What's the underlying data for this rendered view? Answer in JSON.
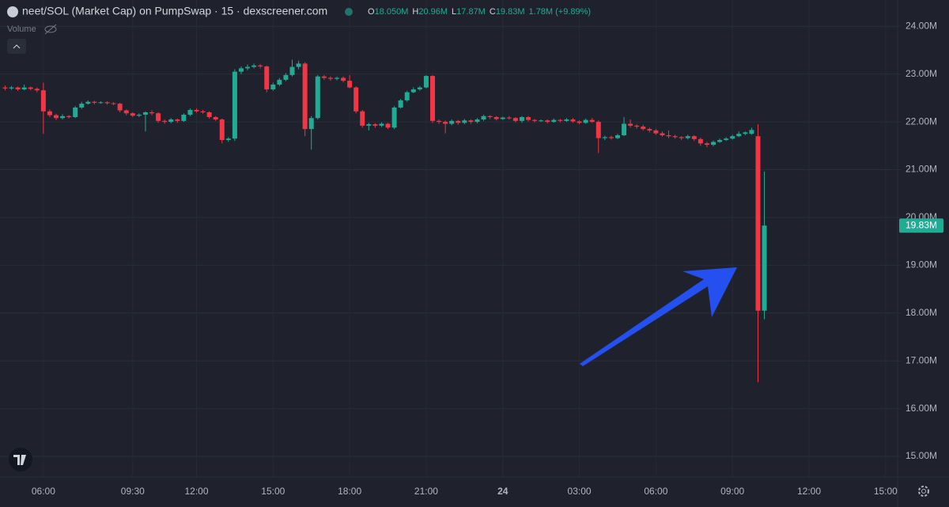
{
  "chart_data": {
    "type": "candlestick",
    "title": "neet/SOL (Market Cap) on PumpSwap · 15 · dexscreener.com",
    "legend": [
      {
        "label": "O",
        "value": "18.050M"
      },
      {
        "label": "H",
        "value": "20.96M"
      },
      {
        "label": "L",
        "value": "17.87M"
      },
      {
        "label": "C",
        "value": "19.83M"
      }
    ],
    "change": "1.78M (+9.89%)",
    "volume_label": "Volume",
    "price_label": "19.83M",
    "up_color": "#22ab94",
    "down_color": "#f23645",
    "grid": true,
    "xlim": [
      4.3,
      39.47
    ],
    "ylim": [
      14.62,
      24.55
    ],
    "xticks": [
      {
        "value": 6,
        "label": "06:00"
      },
      {
        "value": 9.5,
        "label": "09:30"
      },
      {
        "value": 12,
        "label": "12:00"
      },
      {
        "value": 15,
        "label": "15:00"
      },
      {
        "value": 18,
        "label": "18:00"
      },
      {
        "value": 21,
        "label": "21:00"
      },
      24,
      {
        "value": 27,
        "label": "03:00"
      },
      {
        "value": 30,
        "label": "06:00"
      },
      {
        "value": 33,
        "label": "09:00"
      },
      {
        "value": 36,
        "label": "12:00"
      },
      {
        "value": 39,
        "label": "15:00"
      }
    ],
    "yticks": [
      {
        "value": 15,
        "label": "15.00M"
      },
      {
        "value": 16,
        "label": "16.00M"
      },
      {
        "value": 17,
        "label": "17.00M"
      },
      {
        "value": 18,
        "label": "18.00M"
      },
      {
        "value": 19,
        "label": "19.00M"
      },
      {
        "value": 20,
        "label": "20.00M"
      },
      {
        "value": 21,
        "label": "21.00M"
      },
      {
        "value": 22,
        "label": "22.00M"
      },
      {
        "value": 23,
        "label": "23.00M"
      },
      {
        "value": 24,
        "label": "24.00M"
      }
    ],
    "x": [
      4.5,
      4.75,
      5,
      5.25,
      5.5,
      5.75,
      6,
      6.25,
      6.5,
      6.75,
      7,
      7.25,
      7.5,
      7.75,
      8,
      8.25,
      8.5,
      8.75,
      9,
      9.25,
      9.5,
      9.75,
      10,
      10.25,
      10.5,
      10.75,
      11,
      11.25,
      11.5,
      11.75,
      12,
      12.25,
      12.5,
      12.75,
      13,
      13.25,
      13.5,
      13.75,
      14,
      14.25,
      14.5,
      14.75,
      15,
      15.25,
      15.5,
      15.75,
      16,
      16.25,
      16.5,
      16.75,
      17,
      17.25,
      17.5,
      17.75,
      18,
      18.25,
      18.5,
      18.75,
      19,
      19.25,
      19.5,
      19.75,
      20,
      20.25,
      20.5,
      20.75,
      21,
      21.25,
      21.5,
      21.75,
      22,
      22.25,
      22.5,
      22.75,
      23,
      23.25,
      23.5,
      23.75,
      24,
      24.25,
      24.5,
      24.75,
      25,
      25.25,
      25.5,
      25.75,
      26,
      26.25,
      26.5,
      26.75,
      27,
      27.25,
      27.5,
      27.75,
      28,
      28.25,
      28.5,
      28.75,
      29,
      29.25,
      29.5,
      29.75,
      30,
      30.25,
      30.5,
      30.75,
      31,
      31.25,
      31.5,
      31.75,
      32,
      32.25,
      32.5,
      32.75,
      33,
      33.25,
      33.5,
      33.75,
      34,
      34.25
    ],
    "open": [
      22.72,
      22.7,
      22.72,
      22.68,
      22.72,
      22.69,
      22.66,
      22.22,
      22.14,
      22.08,
      22.12,
      22.1,
      22.3,
      22.38,
      22.42,
      22.4,
      22.41,
      22.39,
      22.38,
      22.24,
      22.18,
      22.13,
      22.15,
      22.2,
      22.18,
      22.02,
      22.0,
      22.05,
      22.02,
      22.15,
      22.25,
      22.22,
      22.2,
      22.1,
      22.05,
      21.62,
      21.65,
      23.05,
      23.12,
      23.15,
      23.18,
      23.16,
      22.68,
      22.78,
      22.88,
      22.98,
      23.15,
      23.22,
      21.85,
      22.08,
      22.95,
      22.92,
      22.9,
      22.92,
      22.86,
      22.72,
      22.22,
      21.92,
      21.95,
      21.92,
      21.96,
      21.88,
      22.3,
      22.45,
      22.62,
      22.68,
      22.72,
      22.96,
      22.02,
      22.0,
      21.96,
      22.02,
      21.98,
      22.03,
      22.0,
      22.05,
      22.12,
      22.1,
      22.06,
      22.09,
      22.08,
      22.02,
      22.1,
      22.04,
      22.02,
      22.03,
      22.0,
      22.04,
      22.02,
      22.05,
      22.01,
      21.98,
      22.04,
      22.0,
      21.66,
      21.68,
      21.66,
      21.72,
      21.96,
      21.92,
      21.9,
      21.85,
      21.82,
      21.76,
      21.72,
      21.7,
      21.68,
      21.66,
      21.7,
      21.64,
      21.55,
      21.52,
      21.58,
      21.62,
      21.65,
      21.7,
      21.75,
      21.75,
      21.7,
      18.05
    ],
    "high": [
      22.76,
      22.75,
      22.74,
      22.78,
      22.74,
      22.72,
      22.82,
      22.26,
      22.17,
      22.16,
      22.14,
      22.33,
      22.42,
      22.45,
      22.44,
      22.43,
      22.43,
      22.41,
      22.4,
      22.26,
      22.2,
      22.18,
      22.22,
      22.24,
      22.2,
      22.05,
      22.08,
      22.07,
      22.18,
      22.28,
      22.28,
      22.25,
      22.22,
      22.12,
      22.07,
      21.68,
      23.1,
      23.16,
      23.2,
      23.22,
      23.21,
      23.18,
      22.82,
      22.92,
      23.02,
      23.3,
      23.28,
      23.25,
      22.12,
      22.98,
      22.98,
      22.95,
      22.95,
      22.95,
      22.98,
      22.74,
      22.25,
      21.98,
      21.97,
      21.99,
      21.98,
      22.33,
      22.48,
      22.65,
      22.72,
      22.75,
      22.98,
      22.98,
      22.05,
      22.03,
      22.05,
      22.04,
      22.06,
      22.05,
      22.08,
      22.15,
      22.14,
      22.12,
      22.11,
      22.12,
      22.1,
      22.12,
      22.12,
      22.06,
      22.05,
      22.05,
      22.07,
      22.06,
      22.08,
      22.08,
      22.03,
      22.07,
      22.08,
      22.03,
      21.71,
      21.71,
      21.75,
      22.1,
      22.05,
      21.95,
      21.94,
      21.88,
      21.85,
      21.8,
      21.82,
      21.73,
      21.7,
      21.73,
      21.72,
      21.67,
      21.58,
      21.61,
      21.65,
      21.68,
      21.73,
      21.8,
      21.8,
      21.88,
      21.95,
      20.96
    ],
    "low": [
      22.66,
      22.67,
      22.65,
      22.66,
      22.66,
      22.62,
      21.75,
      22.1,
      22.04,
      22.05,
      22.07,
      22.08,
      22.27,
      22.36,
      22.37,
      22.38,
      22.36,
      22.35,
      22.2,
      22.14,
      22.1,
      22.1,
      21.8,
      22.14,
      21.98,
      21.96,
      21.97,
      21.98,
      22.0,
      22.12,
      22.19,
      22.17,
      22.07,
      22.02,
      21.55,
      21.58,
      21.6,
      23.0,
      23.08,
      23.12,
      23.12,
      22.62,
      22.65,
      22.75,
      22.85,
      22.95,
      23.1,
      21.7,
      21.42,
      22.05,
      22.88,
      22.86,
      22.87,
      22.83,
      22.7,
      22.18,
      21.88,
      21.82,
      21.88,
      21.89,
      21.85,
      21.85,
      22.28,
      22.42,
      22.6,
      22.65,
      22.7,
      21.98,
      21.96,
      21.76,
      21.93,
      21.94,
      21.95,
      21.96,
      21.97,
      22.02,
      22.06,
      22.03,
      22.04,
      22.05,
      21.99,
      21.98,
      22.01,
      21.99,
      22.0,
      21.97,
      21.98,
      21.99,
      22.0,
      21.98,
      21.95,
      21.96,
      21.98,
      21.35,
      21.62,
      21.63,
      21.64,
      21.7,
      21.88,
      21.86,
      21.82,
      21.78,
      21.73,
      21.69,
      21.66,
      21.65,
      21.62,
      21.63,
      21.6,
      21.5,
      21.47,
      21.49,
      21.56,
      21.6,
      21.63,
      21.68,
      21.72,
      21.73,
      16.55,
      17.87
    ],
    "close": [
      22.7,
      22.72,
      22.68,
      22.72,
      22.69,
      22.66,
      22.22,
      22.14,
      22.08,
      22.12,
      22.1,
      22.3,
      22.38,
      22.42,
      22.4,
      22.41,
      22.39,
      22.38,
      22.24,
      22.18,
      22.13,
      22.15,
      22.2,
      22.18,
      22.02,
      22.0,
      22.05,
      22.02,
      22.15,
      22.25,
      22.22,
      22.2,
      22.1,
      22.05,
      21.62,
      21.65,
      23.05,
      23.12,
      23.15,
      23.18,
      23.16,
      22.68,
      22.78,
      22.88,
      22.98,
      23.15,
      23.22,
      21.85,
      22.08,
      22.95,
      22.92,
      22.9,
      22.92,
      22.86,
      22.72,
      22.22,
      21.92,
      21.95,
      21.92,
      21.96,
      21.88,
      22.3,
      22.45,
      22.62,
      22.68,
      22.72,
      22.96,
      22.02,
      22.0,
      21.96,
      22.02,
      21.98,
      22.03,
      22.0,
      22.05,
      22.12,
      22.1,
      22.06,
      22.09,
      22.08,
      22.02,
      22.1,
      22.04,
      22.02,
      22.03,
      22.0,
      22.04,
      22.02,
      22.05,
      22.01,
      21.98,
      22.04,
      22.0,
      21.66,
      21.68,
      21.66,
      21.72,
      21.96,
      21.92,
      21.9,
      21.85,
      21.82,
      21.76,
      21.72,
      21.7,
      21.68,
      21.66,
      21.7,
      21.64,
      21.55,
      21.52,
      21.58,
      21.62,
      21.65,
      21.7,
      21.75,
      21.78,
      21.83,
      18.05,
      19.83
    ]
  }
}
